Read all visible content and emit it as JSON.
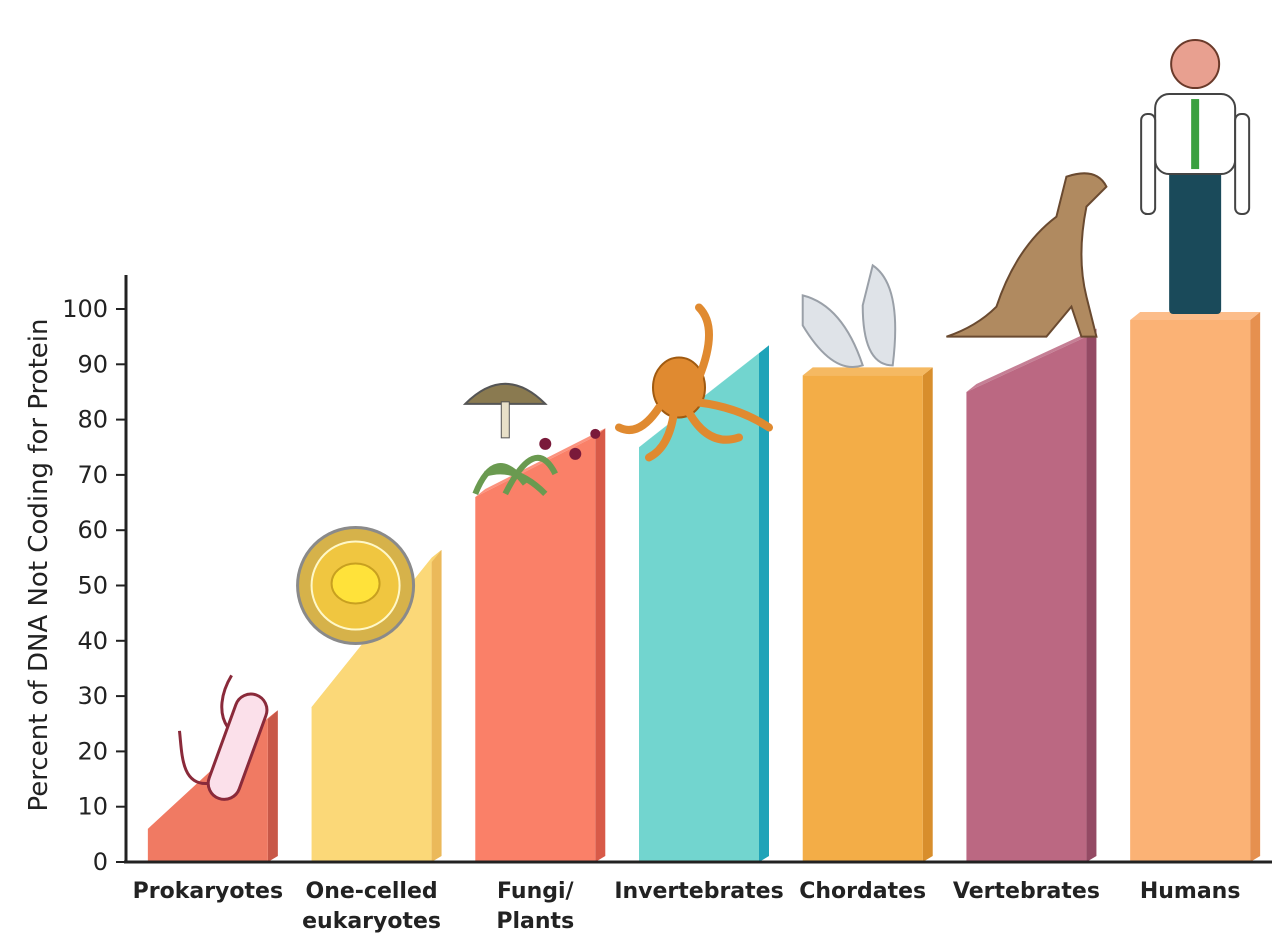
{
  "chart_data": {
    "type": "bar",
    "title": "",
    "ylabel": "Percent of DNA Not Coding for Protein",
    "xlabel": "",
    "ylim": [
      0,
      100
    ],
    "yticks": [
      "0",
      "10",
      "20",
      "30",
      "40",
      "50",
      "60",
      "70",
      "80",
      "90",
      "100"
    ],
    "grid": false,
    "legend": "none",
    "bar_style": "3d-sloped-top",
    "categories": [
      [
        "Prokaryotes"
      ],
      [
        "One-celled",
        "eukaryotes"
      ],
      [
        "Fungi/",
        "Plants"
      ],
      [
        "Invertebrates"
      ],
      [
        "Chordates"
      ],
      [
        "Vertebrates"
      ],
      [
        "Humans"
      ]
    ],
    "ranges": [
      [
        6,
        26
      ],
      [
        28,
        55
      ],
      [
        66,
        77
      ],
      [
        75,
        92
      ],
      [
        88,
        88
      ],
      [
        85,
        95
      ],
      [
        98,
        98
      ]
    ],
    "colors": [
      "#f07a63",
      "#fbd878",
      "#fa8068",
      "#72d5cf",
      "#f3ad47",
      "#bb6882",
      "#fbb275"
    ],
    "side_colors": [
      "#c85848",
      "#ebb95a",
      "#d85a48",
      "#1fa3b8",
      "#d88e2c",
      "#944a64",
      "#e6904f"
    ],
    "illustrations": [
      "bacterium-icon",
      "cell-icon",
      "mushroom-plant-icon",
      "octopus-icon",
      "tunicate-icon",
      "dog-icon",
      "human-icon"
    ]
  }
}
